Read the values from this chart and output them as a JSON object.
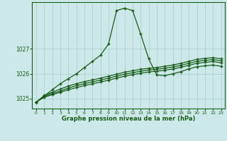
{
  "title": "Graphe pression niveau de la mer (hPa)",
  "bg_color": "#cce8e8",
  "grid_color": "#aacccc",
  "line_color": "#1a5c1a",
  "xlim": [
    -0.5,
    23.5
  ],
  "ylim": [
    1024.6,
    1028.9
  ],
  "yticks": [
    1025,
    1026,
    1027
  ],
  "xticks": [
    0,
    1,
    2,
    3,
    4,
    5,
    6,
    7,
    8,
    9,
    10,
    11,
    12,
    13,
    14,
    15,
    16,
    17,
    18,
    19,
    20,
    21,
    22,
    23
  ],
  "line_main": {
    "x": [
      0,
      1,
      2,
      3,
      4,
      5,
      6,
      7,
      8,
      9,
      10,
      11,
      12,
      13,
      14,
      15,
      16,
      17,
      18,
      19,
      20,
      21,
      22,
      23
    ],
    "y": [
      1024.85,
      1025.1,
      1025.35,
      1025.6,
      1025.8,
      1026.0,
      1026.25,
      1026.5,
      1026.75,
      1027.2,
      1028.55,
      1028.65,
      1028.55,
      1027.6,
      1026.6,
      1025.95,
      1025.92,
      1026.0,
      1026.08,
      1026.2,
      1026.28,
      1026.32,
      1026.35,
      1026.3
    ]
  },
  "line1": {
    "x": [
      0,
      1,
      2,
      3,
      4,
      5,
      6,
      7,
      8,
      9,
      10,
      11,
      12,
      13,
      14,
      15,
      16,
      17,
      18,
      19,
      20,
      21,
      22,
      23
    ],
    "y": [
      1024.85,
      1025.12,
      1025.25,
      1025.38,
      1025.5,
      1025.6,
      1025.68,
      1025.75,
      1025.82,
      1025.9,
      1025.98,
      1026.06,
      1026.12,
      1026.18,
      1026.22,
      1026.25,
      1026.3,
      1026.35,
      1026.42,
      1026.5,
      1026.58,
      1026.62,
      1026.65,
      1026.6
    ]
  },
  "line2": {
    "x": [
      0,
      1,
      2,
      3,
      4,
      5,
      6,
      7,
      8,
      9,
      10,
      11,
      12,
      13,
      14,
      15,
      16,
      17,
      18,
      19,
      20,
      21,
      22,
      23
    ],
    "y": [
      1024.85,
      1025.08,
      1025.2,
      1025.3,
      1025.42,
      1025.52,
      1025.6,
      1025.67,
      1025.74,
      1025.82,
      1025.9,
      1025.98,
      1026.04,
      1026.1,
      1026.15,
      1026.18,
      1026.22,
      1026.27,
      1026.34,
      1026.42,
      1026.5,
      1026.54,
      1026.57,
      1026.52
    ]
  },
  "line3": {
    "x": [
      0,
      1,
      2,
      3,
      4,
      5,
      6,
      7,
      8,
      9,
      10,
      11,
      12,
      13,
      14,
      15,
      16,
      17,
      18,
      19,
      20,
      21,
      22,
      23
    ],
    "y": [
      1024.85,
      1025.05,
      1025.15,
      1025.25,
      1025.35,
      1025.44,
      1025.52,
      1025.59,
      1025.66,
      1025.74,
      1025.82,
      1025.9,
      1025.96,
      1026.02,
      1026.07,
      1026.1,
      1026.14,
      1026.19,
      1026.26,
      1026.34,
      1026.42,
      1026.46,
      1026.49,
      1026.44
    ]
  }
}
